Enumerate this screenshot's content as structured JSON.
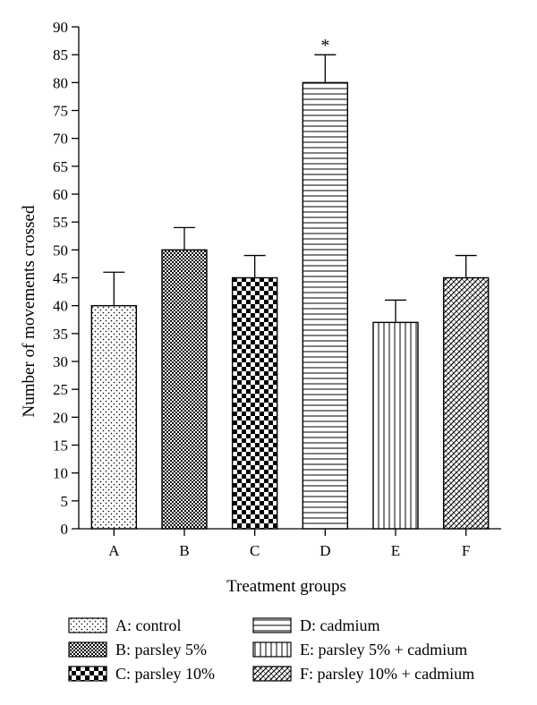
{
  "chart_data": {
    "type": "bar",
    "xlabel": "Treatment groups",
    "ylabel": "Number of movements crossed",
    "ylim": [
      0,
      90
    ],
    "ytick_step": 5,
    "categories": [
      "A",
      "B",
      "C",
      "D",
      "E",
      "F"
    ],
    "values": [
      40,
      50,
      45,
      80,
      37,
      45
    ],
    "errors": [
      6,
      4,
      4,
      5,
      4,
      4
    ],
    "annotations": [
      {
        "category": "D",
        "text": "*"
      }
    ],
    "legend": [
      {
        "key": "A",
        "label": "A: control",
        "pattern": "dots"
      },
      {
        "key": "B",
        "label": "B: parsley 5%",
        "pattern": "fine-checker"
      },
      {
        "key": "C",
        "label": "C: parsley 10%",
        "pattern": "coarse-checker"
      },
      {
        "key": "D",
        "label": "D: cadmium",
        "pattern": "horizontal-lines"
      },
      {
        "key": "E",
        "label": "E: parsley 5% + cadmium",
        "pattern": "vertical-lines"
      },
      {
        "key": "F",
        "label": "F: parsley 10% + cadmium",
        "pattern": "diagonal-crosshatch"
      }
    ],
    "legend_position": "bottom",
    "grid": false
  }
}
